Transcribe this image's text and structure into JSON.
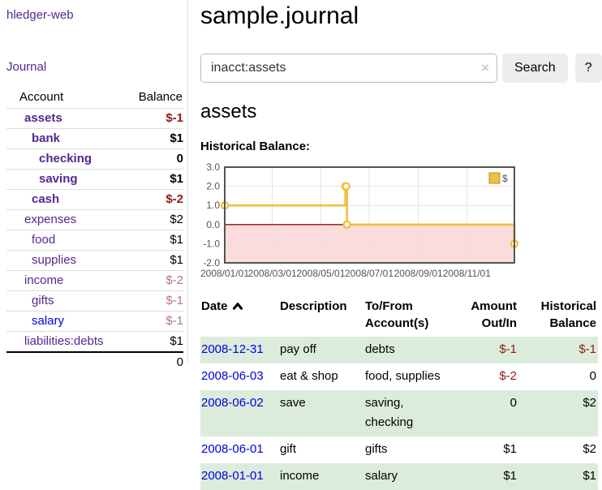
{
  "app": {
    "title": "hledger-web",
    "journal_link": "Journal"
  },
  "sidebar": {
    "account_header": "Account",
    "balance_header": "Balance",
    "accounts": [
      {
        "name": "assets",
        "balance": "$-1",
        "level": 1,
        "bold": true,
        "balance_style": "neg-strong"
      },
      {
        "name": "bank",
        "balance": "$1",
        "level": 2,
        "bold": true,
        "balance_style": "pos"
      },
      {
        "name": "checking",
        "balance": "0",
        "level": 3,
        "bold": true,
        "balance_style": "pos"
      },
      {
        "name": "saving",
        "balance": "$1",
        "level": 3,
        "bold": true,
        "balance_style": "pos"
      },
      {
        "name": "cash",
        "balance": "$-2",
        "level": 2,
        "bold": true,
        "balance_style": "neg-strong"
      },
      {
        "name": "expenses",
        "balance": "$2",
        "level": 1,
        "bold": false,
        "balance_style": "pos"
      },
      {
        "name": "food",
        "balance": "$1",
        "level": 2,
        "bold": false,
        "balance_style": "pos"
      },
      {
        "name": "supplies",
        "balance": "$1",
        "level": 2,
        "bold": false,
        "balance_style": "pos"
      },
      {
        "name": "income",
        "balance": "$-2",
        "level": 1,
        "bold": false,
        "balance_style": "neg-muted"
      },
      {
        "name": "gifts",
        "balance": "$-1",
        "level": 2,
        "bold": false,
        "balance_style": "neg-muted"
      },
      {
        "name": "salary",
        "balance": "$-1",
        "level": 2,
        "bold": false,
        "balance_style": "neg-muted",
        "link_color": "blue"
      },
      {
        "name": "liabilities:debts",
        "balance": "$1",
        "level": 1,
        "bold": false,
        "balance_style": "pos"
      }
    ],
    "total": "0"
  },
  "main": {
    "title": "sample.journal",
    "search": {
      "value": "inacct:assets",
      "clear_icon": "×",
      "button_label": "Search",
      "help_label": "?"
    },
    "account_title": "assets",
    "chart_label": "Historical Balance:",
    "register": {
      "headers": {
        "date": "Date",
        "description": "Description",
        "tofrom": "To/From Account(s)",
        "amount": "Amount Out/In",
        "historical": "Historical Balance"
      },
      "rows": [
        {
          "date": "2008-12-31",
          "description": "pay off",
          "accounts": "debts",
          "amount": "$-1",
          "amount_neg": true,
          "balance": "$-1",
          "balance_neg": true
        },
        {
          "date": "2008-06-03",
          "description": "eat & shop",
          "accounts": "food, supplies",
          "amount": "$-2",
          "amount_neg": true,
          "balance": "0",
          "balance_neg": false
        },
        {
          "date": "2008-06-02",
          "description": "save",
          "accounts": "saving, checking",
          "amount": "0",
          "amount_neg": false,
          "balance": "$2",
          "balance_neg": false
        },
        {
          "date": "2008-06-01",
          "description": "gift",
          "accounts": "gifts",
          "amount": "$1",
          "amount_neg": false,
          "balance": "$2",
          "balance_neg": false
        },
        {
          "date": "2008-01-01",
          "description": "income",
          "accounts": "salary",
          "amount": "$1",
          "amount_neg": false,
          "balance": "$1",
          "balance_neg": false
        }
      ]
    }
  },
  "colors": {
    "link_purple": "#54278f",
    "link_blue": "#0000e0",
    "negative_strong": "#8f1a1a",
    "negative_muted": "#b57575",
    "row_green": "#dcecdc"
  },
  "chart_data": {
    "type": "line",
    "title": "Historical Balance",
    "step": "after",
    "x": [
      "2008-01-01",
      "2008-06-01",
      "2008-06-02",
      "2008-06-03",
      "2008-12-31"
    ],
    "x_days": [
      0,
      152,
      153,
      154,
      365
    ],
    "values": [
      1,
      2,
      2,
      0,
      -1
    ],
    "ylim": [
      -2,
      3
    ],
    "x_range_days": [
      0,
      365
    ],
    "y_ticks": [
      "3.0",
      "2.0",
      "1.0",
      "0.0",
      "-1.0",
      "-2.0"
    ],
    "x_ticks": [
      {
        "label": "2008/01/01",
        "day": 0
      },
      {
        "label": "2008/03/01",
        "day": 60
      },
      {
        "label": "2008/05/01",
        "day": 121
      },
      {
        "label": "2008/07/01",
        "day": 182
      },
      {
        "label": "2008/09/01",
        "day": 244
      },
      {
        "label": "2008/11/01",
        "day": 305
      }
    ],
    "legend": [
      {
        "label": "$",
        "color": "#edc240"
      }
    ],
    "legend_position": "top-right",
    "grid": true,
    "line_color": "#edc240",
    "marker_fill": "#ffffff",
    "negative_region_color": "#fbdbdb",
    "zero_line_color": "#8f1010",
    "border_color": "#545454"
  }
}
